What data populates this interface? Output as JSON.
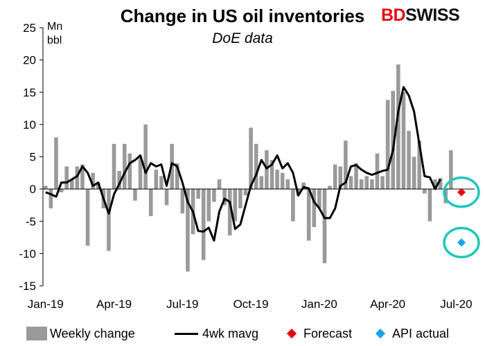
{
  "title": "Change in US oil inventories",
  "subtitle": "DoE data",
  "unit_line1": "Mn",
  "unit_line2": "bbl",
  "logo": {
    "part1": "BD",
    "part2": "SWISS"
  },
  "colors": {
    "bars": "#9a9a9a",
    "line": "#000000",
    "forecast": "#e30613",
    "api": "#1aa3e8",
    "highlight_circle": "#1fc8b8"
  },
  "legend": {
    "bars": "Weekly change",
    "line": "4wk mavg",
    "forecast": "Forecast",
    "api": "API actual"
  },
  "chart_data": {
    "type": "bar",
    "ylim": [
      -15,
      25
    ],
    "yticks": [
      -15,
      -10,
      -5,
      0,
      5,
      10,
      15,
      20,
      25
    ],
    "xtick_labels": [
      "Jan-19",
      "Apr-19",
      "Jul-19",
      "Oct-19",
      "Jan-20",
      "Apr-20",
      "Jul-20"
    ],
    "xtick_index": [
      0,
      13,
      26,
      39,
      52,
      65,
      78
    ],
    "grid": false,
    "legend_position": "bottom",
    "series": [
      {
        "name": "Weekly change",
        "type": "bar",
        "values": [
          0.5,
          -3.0,
          8.0,
          -0.5,
          3.5,
          1.5,
          3.5,
          3.8,
          -8.8,
          2.5,
          1.0,
          -3.0,
          -9.6,
          7.0,
          2.8,
          7.0,
          5.5,
          -1.8,
          4.8,
          10.0,
          -4.2,
          3.0,
          2.0,
          -2.5,
          7.0,
          4.0,
          -3.8,
          -12.8,
          -7.0,
          -1.5,
          -11.0,
          -5.0,
          -2.0,
          1.5,
          -2.5,
          -7.2,
          -5.0,
          -3.0,
          -1.0,
          9.5,
          7.0,
          2.0,
          6.0,
          4.5,
          3.0,
          2.5,
          1.5,
          -5.0,
          -1.0,
          1.0,
          -8.0,
          -5.9,
          -3.0,
          -11.5,
          0.5,
          3.8,
          3.5,
          7.5,
          2.0,
          4.0,
          1.5,
          2.0,
          1.5,
          5.5,
          2.0,
          13.8,
          15.2,
          19.3,
          15.0,
          9.0,
          5.0,
          7.5,
          -0.7,
          -5.0,
          1.5,
          1.7,
          -2.2,
          6.0
        ],
        "index_start": 0
      },
      {
        "name": "4wk mavg",
        "type": "line",
        "values": [
          -0.5,
          -0.8,
          -1.2,
          1.0,
          1.0,
          1.5,
          2.0,
          3.5,
          2.5,
          0.5,
          1.0,
          -1.5,
          -3.8,
          -0.8,
          0.8,
          2.5,
          4.0,
          4.5,
          5.2,
          2.5,
          4.0,
          3.5,
          3.8,
          0.5,
          4.0,
          3.5,
          1.0,
          -2.0,
          -3.5,
          -6.5,
          -6.6,
          -6.0,
          -8.0,
          -3.5,
          -1.5,
          -2.0,
          -6.2,
          -5.5,
          -2.5,
          0.5,
          2.2,
          4.5,
          3.2,
          3.8,
          5.2,
          3.2,
          4.0,
          2.5,
          -1.0,
          0.3,
          0.1,
          -2.0,
          -3.0,
          -4.5,
          -4.5,
          -3.0,
          0.5,
          1.0,
          3.5,
          3.7,
          3.0,
          2.5,
          2.2,
          2.5,
          2.8,
          3.0,
          6.0,
          12.0,
          15.8,
          14.5,
          12.0,
          7.0,
          2.0,
          1.8,
          0.0,
          1.5
        ],
        "index_start": 0
      },
      {
        "name": "Forecast",
        "type": "point",
        "index": 79,
        "value": -0.5
      },
      {
        "name": "API actual",
        "type": "point",
        "index": 79,
        "value": -8.3
      }
    ]
  }
}
